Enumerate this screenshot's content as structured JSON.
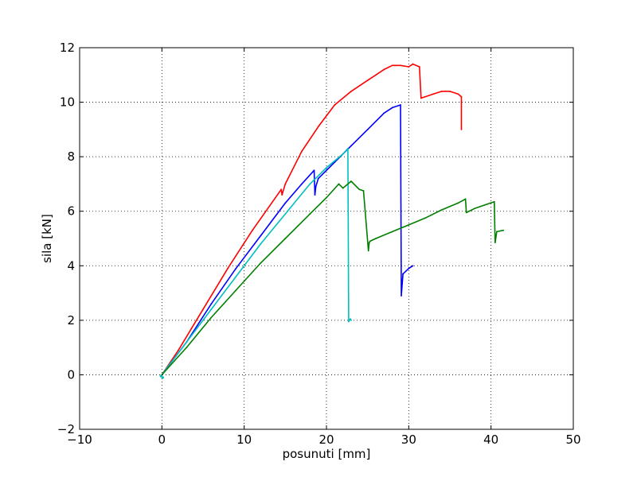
{
  "chart_data": {
    "type": "line",
    "title": "",
    "xlabel": "posunuti [mm]",
    "ylabel": "sila [kN]",
    "xlim": [
      -10,
      50
    ],
    "ylim": [
      -2,
      12
    ],
    "xticks": [
      -10,
      0,
      10,
      20,
      30,
      40,
      50
    ],
    "yticks": [
      -2,
      0,
      2,
      4,
      6,
      8,
      10,
      12
    ],
    "xtick_labels": [
      "−10",
      "0",
      "10",
      "20",
      "30",
      "40",
      "50"
    ],
    "ytick_labels": [
      "−2",
      "0",
      "2",
      "4",
      "6",
      "8",
      "10",
      "12"
    ],
    "grid": true,
    "legend": "none",
    "series": [
      {
        "color": "#ff0000",
        "x": [
          0,
          2,
          5,
          8,
          11,
          14.5,
          14.6,
          14.7,
          15,
          17,
          19,
          21,
          23,
          25,
          26,
          27,
          28,
          29,
          30,
          30.5,
          31.3,
          31.5,
          32,
          33,
          34,
          35,
          36,
          36.4,
          36.4
        ],
        "y": [
          0,
          0.9,
          2.4,
          3.9,
          5.3,
          6.8,
          6.6,
          6.7,
          7.0,
          8.2,
          9.1,
          9.9,
          10.4,
          10.8,
          11.0,
          11.2,
          11.35,
          11.35,
          11.3,
          11.4,
          11.3,
          10.15,
          10.2,
          10.3,
          10.4,
          10.4,
          10.3,
          10.2,
          9.0
        ]
      },
      {
        "color": "#0000ff",
        "x": [
          0,
          3,
          6,
          9,
          12,
          15,
          17,
          18.5,
          18.6,
          18.7,
          19,
          21,
          23,
          25,
          27,
          28,
          29,
          29.1,
          29.3,
          30,
          30.5
        ],
        "y": [
          0,
          1.2,
          2.6,
          3.9,
          5.1,
          6.3,
          7.0,
          7.5,
          6.6,
          6.9,
          7.2,
          7.8,
          8.4,
          9.0,
          9.6,
          9.8,
          9.9,
          2.9,
          3.7,
          3.9,
          4.0
        ]
      },
      {
        "color": "#00bfbf",
        "x": [
          0,
          3,
          6,
          9,
          12,
          15,
          18,
          20,
          22,
          22.6,
          22.7,
          22.9,
          23.0
        ],
        "y": [
          0,
          1.2,
          2.4,
          3.6,
          4.8,
          5.9,
          7.0,
          7.6,
          8.1,
          8.3,
          1.95,
          2.05,
          2.0
        ],
        "marker_x": [
          -0.1,
          0.1
        ],
        "marker_y": [
          -0.05,
          -0.1
        ]
      },
      {
        "color": "#007f00",
        "x": [
          0,
          3,
          6,
          9,
          12,
          15,
          18,
          20,
          21.5,
          22,
          23,
          24,
          24.5,
          25.1,
          25.2,
          25.3,
          26,
          28,
          30,
          32,
          34,
          36,
          36.9,
          37.0,
          38,
          40.4,
          40.5,
          40.7,
          41.5
        ],
        "y": [
          0,
          1.0,
          2.1,
          3.1,
          4.1,
          5.0,
          5.9,
          6.5,
          7.0,
          6.85,
          7.1,
          6.8,
          6.75,
          4.55,
          4.85,
          4.9,
          5.0,
          5.25,
          5.5,
          5.75,
          6.05,
          6.3,
          6.45,
          5.95,
          6.1,
          6.35,
          4.85,
          5.25,
          5.3
        ]
      }
    ]
  }
}
